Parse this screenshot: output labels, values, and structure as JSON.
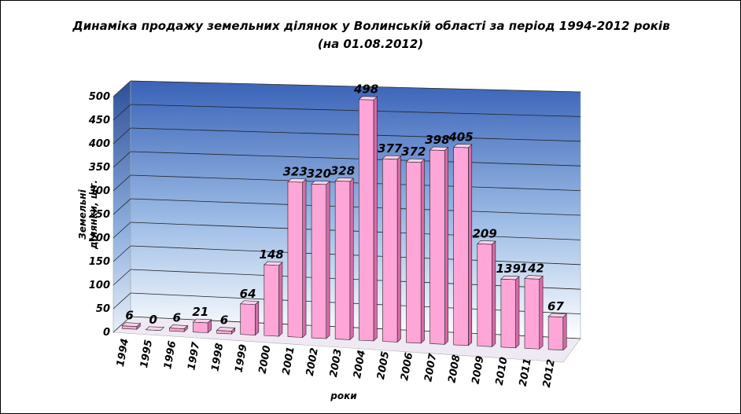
{
  "chart_data": {
    "type": "bar",
    "title_line1": "Динаміка продажу земельних ділянок у Волинській області за період 1994-2012 років",
    "title_line2": "(на  01.08.2012)",
    "xlabel": "роки",
    "ylabel_line1": "Земельні",
    "ylabel_line2": "ділянки, шт.",
    "ylim": [
      0,
      500
    ],
    "yticks": [
      0,
      50,
      100,
      150,
      200,
      250,
      300,
      350,
      400,
      450,
      500
    ],
    "grid": true,
    "categories": [
      "1994",
      "1995",
      "1996",
      "1997",
      "1998",
      "1999",
      "2000",
      "2001",
      "2002",
      "2003",
      "2004",
      "2005",
      "2006",
      "2007",
      "2008",
      "2009",
      "2010",
      "2011",
      "2012"
    ],
    "values": [
      6,
      0,
      6,
      21,
      6,
      64,
      148,
      323,
      320,
      328,
      498,
      377,
      372,
      398,
      405,
      209,
      139,
      142,
      67
    ],
    "colors": {
      "bar_front": "#ffa6d8",
      "bar_side": "#d86aa8",
      "bar_top": "#ffd0ec",
      "wall_top": "#3a63b8",
      "wall_bottom": "#ffffff",
      "floor": "#efe9f3"
    }
  }
}
